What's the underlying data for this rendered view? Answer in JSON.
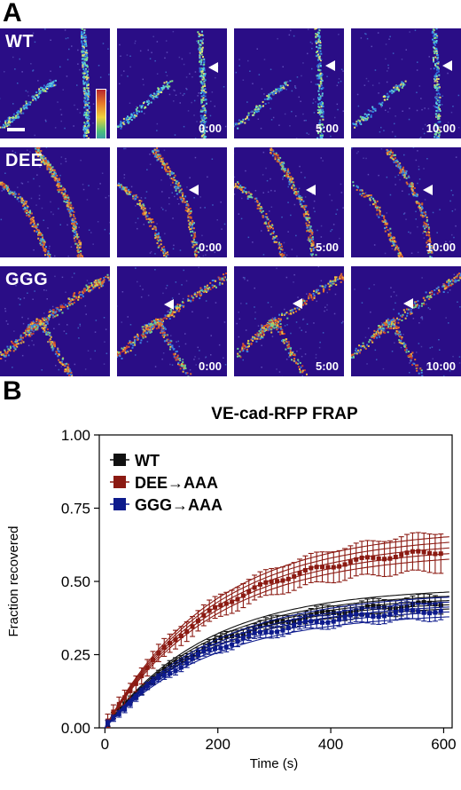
{
  "panels": {
    "a": "A",
    "b": "B"
  },
  "rows": [
    {
      "label": "WT",
      "times": [
        "",
        "0:00",
        "5:00",
        "10:00"
      ]
    },
    {
      "label": "DEE",
      "times": [
        "",
        "0:00",
        "5:00",
        "10:00"
      ]
    },
    {
      "label": "GGG",
      "times": [
        "",
        "0:00",
        "5:00",
        "10:00"
      ]
    }
  ],
  "colors": {
    "WT": "#111111",
    "DEE": "#8b1a12",
    "GGG": "#0d1a8c",
    "tile_bg": "#2a0d86"
  },
  "chart_data": {
    "type": "scatter",
    "title": "VE-cad-RFP FRAP",
    "xlabel": "Time (s)",
    "ylabel": "Fraction recovered",
    "xlim": [
      -10,
      615
    ],
    "ylim": [
      0,
      1.0
    ],
    "xticks": [
      0,
      200,
      400,
      600
    ],
    "xtick_labels": [
      "0",
      "200",
      "400",
      "600"
    ],
    "yticks": [
      0,
      0.25,
      0.5,
      0.75,
      1.0
    ],
    "ytick_labels": [
      "0.00",
      "0.25",
      "0.50",
      "0.75",
      "1.00"
    ],
    "legend_position": "top-left",
    "series": [
      {
        "name": "WT",
        "color": "#111111",
        "plateau": 0.45,
        "tau": 180,
        "spread": 0.03,
        "err": 0.02
      },
      {
        "name": "DEE→AAA",
        "color": "#8b1a12",
        "plateau": 0.64,
        "tau": 190,
        "spread": 0.04,
        "err": 0.045
      },
      {
        "name": "GGG→AAA",
        "color": "#0d1a8c",
        "plateau": 0.43,
        "tau": 190,
        "spread": 0.035,
        "err": 0.02
      }
    ]
  }
}
